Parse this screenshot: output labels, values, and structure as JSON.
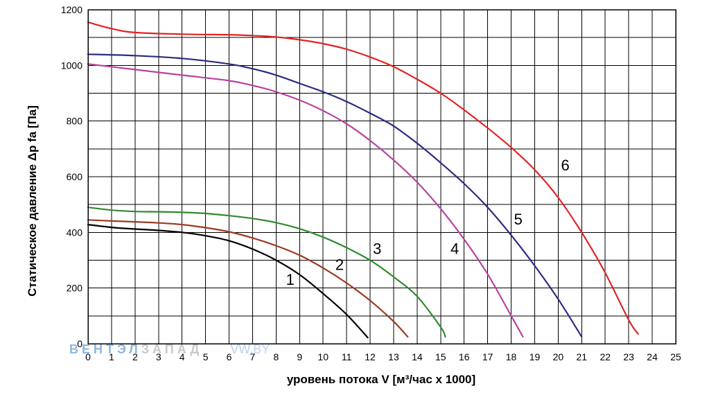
{
  "watermark": {
    "left": "ВЕНТЭЛ",
    "mid": "ЗАПАД",
    "right": "VW.BY"
  },
  "chart_data": {
    "type": "line",
    "title": "",
    "xlabel": "уровень потока  V [м³/час x 1000]",
    "ylabel": "Статическое давление  Δp fa [Па]",
    "xlim": [
      0,
      25
    ],
    "ylim": [
      0,
      1200
    ],
    "x_ticks": [
      0,
      1,
      2,
      3,
      4,
      5,
      6,
      7,
      8,
      9,
      10,
      11,
      12,
      13,
      14,
      15,
      16,
      17,
      18,
      19,
      20,
      21,
      22,
      23,
      24,
      25
    ],
    "y_ticks": [
      0,
      200,
      400,
      600,
      800,
      1000,
      1200
    ],
    "grid": true,
    "x_grid_step": 1,
    "y_grid_step": 100,
    "series": [
      {
        "name": "1",
        "color": "#000000",
        "label_at": [
          8.6,
          212
        ],
        "x": [
          0,
          1,
          2,
          3,
          4,
          5,
          6,
          7,
          8,
          9,
          10,
          11,
          11.9
        ],
        "y": [
          428,
          418,
          412,
          407,
          400,
          388,
          370,
          340,
          300,
          248,
          180,
          105,
          22
        ]
      },
      {
        "name": "2",
        "color": "#9b3a1e",
        "label_at": [
          10.7,
          265
        ],
        "x": [
          0,
          1,
          2,
          3,
          4,
          5,
          6,
          7,
          8,
          9,
          10,
          11,
          12,
          13,
          13.6
        ],
        "y": [
          445,
          441,
          438,
          434,
          428,
          417,
          402,
          380,
          352,
          318,
          272,
          218,
          155,
          80,
          25
        ]
      },
      {
        "name": "3",
        "color": "#2e8b2e",
        "label_at": [
          12.3,
          322
        ],
        "x": [
          0,
          1,
          2,
          3,
          4,
          5,
          6,
          7,
          8,
          9,
          10,
          11,
          12,
          13,
          14,
          15,
          15.2
        ],
        "y": [
          490,
          480,
          475,
          474,
          472,
          468,
          460,
          450,
          435,
          413,
          383,
          345,
          300,
          240,
          170,
          60,
          25
        ]
      },
      {
        "name": "4",
        "color": "#b8429f",
        "label_at": [
          15.6,
          322
        ],
        "x": [
          0,
          2,
          4,
          6,
          7,
          8,
          9,
          10,
          11,
          12,
          13,
          14,
          15,
          16,
          17,
          18,
          18.5
        ],
        "y": [
          1005,
          985,
          965,
          945,
          928,
          905,
          875,
          837,
          790,
          730,
          660,
          580,
          485,
          375,
          250,
          100,
          25
        ]
      },
      {
        "name": "5",
        "color": "#2a2a82",
        "label_at": [
          18.3,
          428
        ],
        "x": [
          0,
          2,
          4,
          6,
          7,
          8,
          9,
          10,
          11,
          12,
          13,
          14,
          15,
          16,
          17,
          18,
          19,
          20,
          21
        ],
        "y": [
          1040,
          1035,
          1025,
          1005,
          988,
          965,
          935,
          905,
          870,
          828,
          782,
          720,
          650,
          575,
          490,
          390,
          280,
          160,
          25
        ]
      },
      {
        "name": "6",
        "color": "#e32222",
        "label_at": [
          20.3,
          622
        ],
        "x": [
          0,
          1,
          2,
          4,
          6,
          7,
          8,
          9,
          10,
          11,
          12,
          13,
          14,
          15,
          16,
          17,
          18,
          19,
          20,
          21,
          22,
          23,
          23.4
        ],
        "y": [
          1155,
          1132,
          1118,
          1112,
          1110,
          1107,
          1102,
          1092,
          1078,
          1058,
          1030,
          995,
          950,
          900,
          840,
          775,
          705,
          625,
          525,
          400,
          255,
          85,
          35
        ]
      }
    ]
  }
}
